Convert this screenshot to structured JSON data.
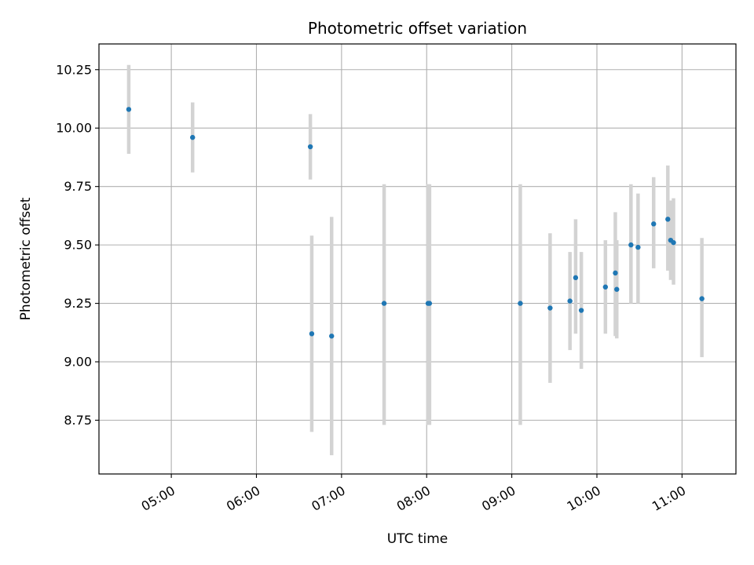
{
  "chart_data": {
    "type": "scatter",
    "title": "Photometric offset variation",
    "xlabel": "UTC time",
    "ylabel": "Photometric offset",
    "x_ticks": [
      "05:00",
      "06:00",
      "07:00",
      "08:00",
      "09:00",
      "10:00",
      "11:00"
    ],
    "y_ticks": [
      "8.75",
      "9.00",
      "9.25",
      "9.50",
      "9.75",
      "10.00",
      "10.25"
    ],
    "xlim": [
      "04:09",
      "11:38"
    ],
    "ylim": [
      8.52,
      10.36
    ],
    "grid": true,
    "colors": {
      "point": "#1f77b4",
      "errorbar": "#d3d3d3",
      "grid": "#b0b0b0"
    },
    "points": [
      {
        "time": "04:30",
        "y": 10.08,
        "ylow": 9.89,
        "yhigh": 10.27
      },
      {
        "time": "05:15",
        "y": 9.96,
        "ylow": 9.81,
        "yhigh": 10.11
      },
      {
        "time": "06:38",
        "y": 9.92,
        "ylow": 9.78,
        "yhigh": 10.06
      },
      {
        "time": "06:39",
        "y": 9.12,
        "ylow": 8.7,
        "yhigh": 9.54
      },
      {
        "time": "06:53",
        "y": 9.11,
        "ylow": 8.6,
        "yhigh": 9.62
      },
      {
        "time": "07:30",
        "y": 9.25,
        "ylow": 8.73,
        "yhigh": 9.76
      },
      {
        "time": "08:01",
        "y": 9.25,
        "ylow": 8.73,
        "yhigh": 9.76
      },
      {
        "time": "08:02",
        "y": 9.25,
        "ylow": 8.73,
        "yhigh": 9.76
      },
      {
        "time": "09:06",
        "y": 9.25,
        "ylow": 8.73,
        "yhigh": 9.76
      },
      {
        "time": "09:27",
        "y": 9.23,
        "ylow": 8.91,
        "yhigh": 9.55
      },
      {
        "time": "09:41",
        "y": 9.26,
        "ylow": 9.05,
        "yhigh": 9.47
      },
      {
        "time": "09:45",
        "y": 9.36,
        "ylow": 9.12,
        "yhigh": 9.61
      },
      {
        "time": "09:49",
        "y": 9.22,
        "ylow": 8.97,
        "yhigh": 9.47
      },
      {
        "time": "10:06",
        "y": 9.32,
        "ylow": 9.12,
        "yhigh": 9.52
      },
      {
        "time": "10:13",
        "y": 9.38,
        "ylow": 9.11,
        "yhigh": 9.64
      },
      {
        "time": "10:14",
        "y": 9.31,
        "ylow": 9.1,
        "yhigh": 9.52
      },
      {
        "time": "10:24",
        "y": 9.5,
        "ylow": 9.25,
        "yhigh": 9.76
      },
      {
        "time": "10:29",
        "y": 9.49,
        "ylow": 9.25,
        "yhigh": 9.72
      },
      {
        "time": "10:40",
        "y": 9.59,
        "ylow": 9.4,
        "yhigh": 9.79
      },
      {
        "time": "10:50",
        "y": 9.61,
        "ylow": 9.39,
        "yhigh": 9.84
      },
      {
        "time": "10:52",
        "y": 9.52,
        "ylow": 9.35,
        "yhigh": 9.69
      },
      {
        "time": "10:54",
        "y": 9.51,
        "ylow": 9.33,
        "yhigh": 9.7
      },
      {
        "time": "11:14",
        "y": 9.27,
        "ylow": 9.02,
        "yhigh": 9.53
      }
    ]
  }
}
